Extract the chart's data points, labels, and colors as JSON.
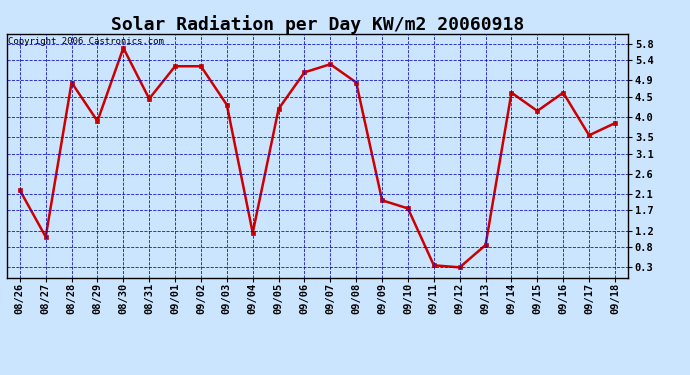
{
  "title": "Solar Radiation per Day KW/m2 20060918",
  "copyright_text": "Copyright 2006 Castronics.com",
  "x_labels": [
    "08/26",
    "08/27",
    "08/28",
    "08/29",
    "08/30",
    "08/31",
    "09/01",
    "09/02",
    "09/03",
    "09/04",
    "09/05",
    "09/06",
    "09/07",
    "09/08",
    "09/09",
    "09/10",
    "09/11",
    "09/12",
    "09/13",
    "09/14",
    "09/15",
    "09/16",
    "09/17",
    "09/18"
  ],
  "y_values": [
    2.2,
    1.05,
    4.85,
    3.9,
    5.7,
    4.45,
    5.25,
    5.25,
    4.3,
    1.15,
    4.2,
    5.1,
    5.3,
    4.85,
    1.95,
    1.75,
    0.35,
    0.3,
    0.85,
    4.6,
    4.15,
    4.6,
    3.55,
    3.85
  ],
  "line_color": "#cc0000",
  "marker_color": "#cc0000",
  "background_color": "#cce5ff",
  "plot_bg_color": "#cce5ff",
  "grid_color": "#0000bb",
  "text_color": "#000000",
  "border_color": "#000000",
  "ylim": [
    0.05,
    6.05
  ],
  "yticks": [
    0.3,
    0.8,
    1.2,
    1.7,
    2.1,
    2.6,
    3.1,
    3.5,
    4.0,
    4.5,
    4.9,
    5.4,
    5.8
  ],
  "ytick_labels": [
    "0.3",
    "0.8",
    "1.2",
    "1.7",
    "2.1",
    "2.6",
    "3.1",
    "3.5",
    "4.0",
    "4.5",
    "4.9",
    "5.4",
    "5.8"
  ],
  "title_fontsize": 13,
  "copyright_fontsize": 6.5,
  "tick_fontsize": 7.5,
  "marker_size": 3,
  "line_width": 1.8
}
